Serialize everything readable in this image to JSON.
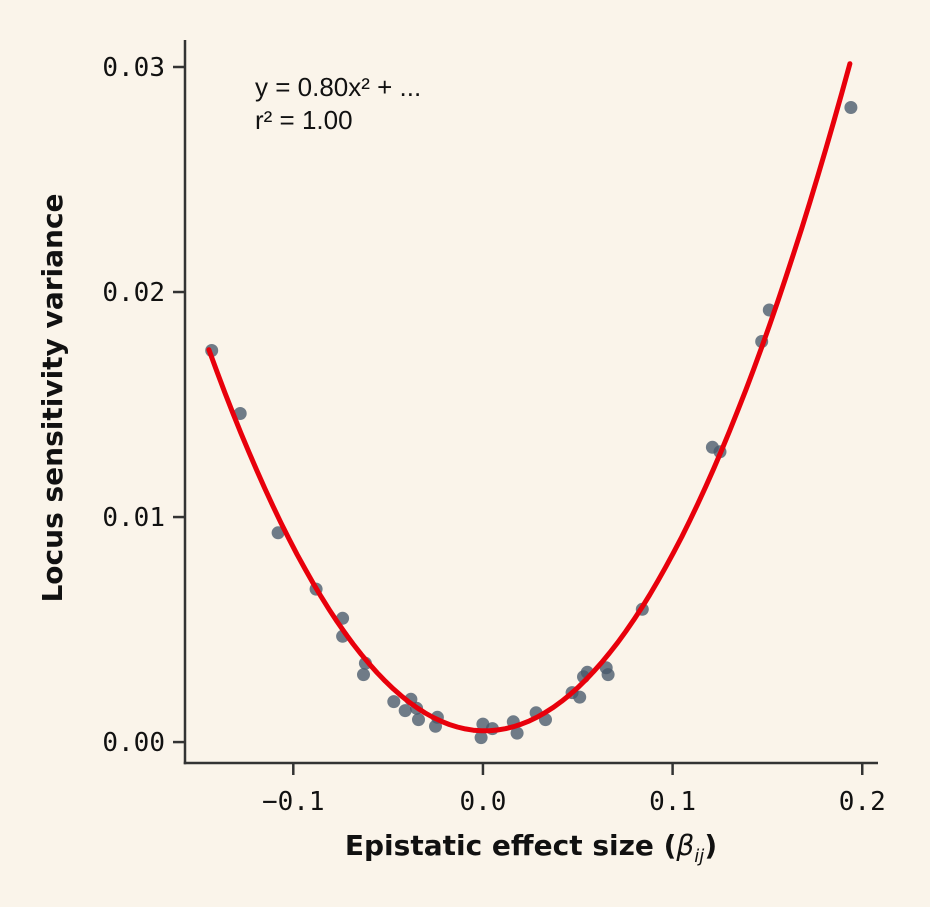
{
  "figure": {
    "background": "#faf4ea"
  },
  "annotation": {
    "equation": "y = 0.80x² + ...",
    "r_squared": "r² = 1.00"
  },
  "axes": {
    "ylabel": "Locus sensitivity variance",
    "xlabel_prefix": "Epistatic effect size (",
    "xlabel_beta": "β",
    "xlabel_subscript": "ij",
    "xlabel_suffix": ")"
  },
  "chart_data": {
    "type": "scatter",
    "title": "",
    "xlabel": "Epistatic effect size (β_ij)",
    "ylabel": "Locus sensitivity variance",
    "xlim": [
      -0.1571,
      0.2083
    ],
    "ylim": [
      -0.00093,
      0.0312
    ],
    "grid": false,
    "legend": "none",
    "xticks": [
      {
        "value": -0.1,
        "label": "−0.1"
      },
      {
        "value": 0.0,
        "label": "0.0"
      },
      {
        "value": 0.1,
        "label": "0.1"
      },
      {
        "value": 0.2,
        "label": "0.2"
      }
    ],
    "yticks": [
      {
        "value": 0.0,
        "label": "0.00"
      },
      {
        "value": 0.01,
        "label": "0.01"
      },
      {
        "value": 0.02,
        "label": "0.02"
      },
      {
        "value": 0.03,
        "label": "0.03"
      }
    ],
    "points": [
      [
        -0.143,
        0.0174
      ],
      [
        -0.128,
        0.0146
      ],
      [
        -0.108,
        0.0093
      ],
      [
        -0.088,
        0.0068
      ],
      [
        -0.074,
        0.0055
      ],
      [
        -0.074,
        0.0047
      ],
      [
        -0.062,
        0.0035
      ],
      [
        -0.063,
        0.003
      ],
      [
        -0.047,
        0.0018
      ],
      [
        -0.041,
        0.0014
      ],
      [
        -0.038,
        0.0019
      ],
      [
        -0.035,
        0.0015
      ],
      [
        -0.034,
        0.001
      ],
      [
        -0.024,
        0.0011
      ],
      [
        -0.025,
        0.0007
      ],
      [
        0.0,
        0.0008
      ],
      [
        0.005,
        0.0006
      ],
      [
        -0.001,
        0.0002
      ],
      [
        0.016,
        0.0009
      ],
      [
        0.018,
        0.0004
      ],
      [
        0.028,
        0.0013
      ],
      [
        0.033,
        0.001
      ],
      [
        0.047,
        0.0022
      ],
      [
        0.051,
        0.002
      ],
      [
        0.053,
        0.0029
      ],
      [
        0.055,
        0.0031
      ],
      [
        0.065,
        0.0033
      ],
      [
        0.066,
        0.003
      ],
      [
        0.084,
        0.0059
      ],
      [
        0.121,
        0.0131
      ],
      [
        0.125,
        0.0129
      ],
      [
        0.147,
        0.0178
      ],
      [
        0.151,
        0.0192
      ],
      [
        0.194,
        0.0282
      ]
    ],
    "fit_curve": {
      "type": "quadratic",
      "a": 0.8,
      "vertex_x": 0.001,
      "vertex_y": 0.0005,
      "x_range": [
        -0.1445,
        0.1935
      ]
    },
    "colors": {
      "point": "#48586a",
      "point_opacity": 0.78,
      "curve": "#e8000b",
      "spine": "#333333",
      "text": "#111111",
      "background": "#faf4ea"
    }
  }
}
